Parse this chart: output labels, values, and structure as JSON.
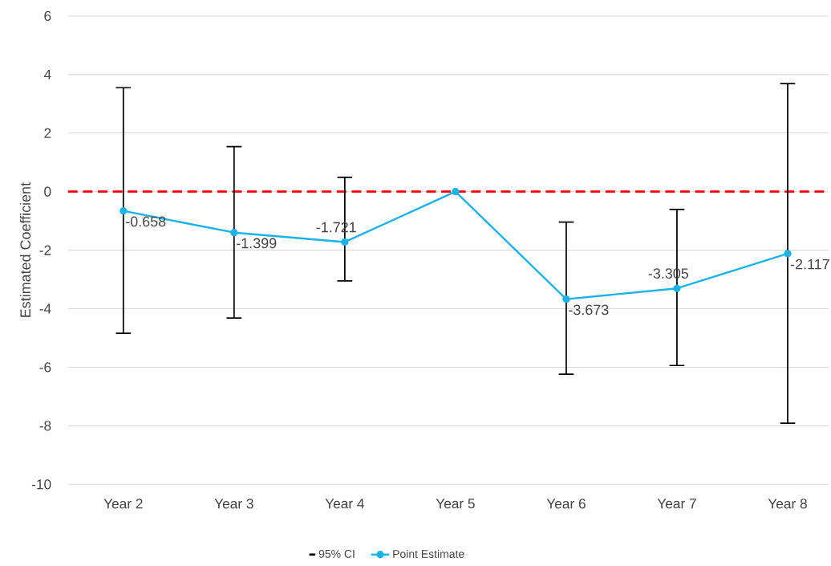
{
  "chart_data": {
    "type": "line",
    "ylabel": "Estimated Coefficient",
    "categories": [
      "Year 2",
      "Year 3",
      "Year 4",
      "Year 5",
      "Year 6",
      "Year 7",
      "Year 8"
    ],
    "series": [
      {
        "name": "Point Estimate",
        "marker": "circle",
        "color": "#1cb2e6",
        "values": [
          -0.658,
          -1.399,
          -1.721,
          0,
          -3.673,
          -3.305,
          -2.117
        ],
        "value_labels": [
          "-0.658",
          "-1.399",
          "-1.721",
          null,
          "-3.673",
          "-3.305",
          "-2.117"
        ],
        "errors": [
          [
            -4.84,
            3.55
          ],
          [
            -4.32,
            1.54
          ],
          [
            -3.05,
            0.49
          ],
          null,
          [
            -6.24,
            -1.04
          ],
          [
            -5.94,
            -0.61
          ],
          [
            -7.91,
            3.69
          ]
        ]
      }
    ],
    "annotations": [
      "95% CI"
    ],
    "ylim": [
      -10,
      6
    ],
    "yticks": [
      -10,
      -8,
      -6,
      -4,
      -2,
      0,
      2,
      4,
      6
    ],
    "grid": "y",
    "legend": "bottom",
    "ref_lines": [
      {
        "axis": "y",
        "value": 0,
        "color": "#ff0000",
        "line_style": "dashed"
      }
    ]
  }
}
